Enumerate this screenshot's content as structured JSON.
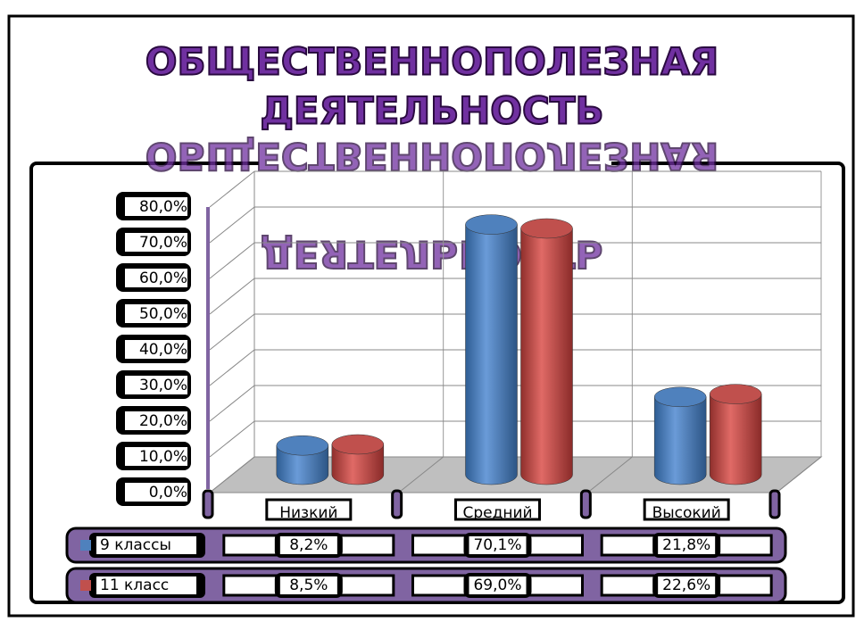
{
  "chart_data": {
    "type": "bar3d_cylinder",
    "title": [
      "ОБЩЕСТВЕННОПОЛЕЗНАЯ",
      "ДЕЯТЕЛЬНОСТЬ"
    ],
    "categories": [
      "Низкий",
      "Средний",
      "Высокий"
    ],
    "series": [
      {
        "name": "9 классы",
        "color": "#4f81bd",
        "values": [
          8.2,
          70.1,
          21.8
        ],
        "value_labels": [
          "8,2%",
          "70,1%",
          "21,8%"
        ]
      },
      {
        "name": "11 класс",
        "color": "#c0504d",
        "values": [
          8.5,
          69.0,
          22.6
        ],
        "value_labels": [
          "8,5%",
          "69,0%",
          "22,6%"
        ]
      }
    ],
    "ylim": [
      0,
      80
    ],
    "yticks": [
      {
        "value": 0,
        "label": "0,0%"
      },
      {
        "value": 10,
        "label": "10,0%"
      },
      {
        "value": 20,
        "label": "20,0%"
      },
      {
        "value": 30,
        "label": "30,0%"
      },
      {
        "value": 40,
        "label": "40,0%"
      },
      {
        "value": 50,
        "label": "50,0%"
      },
      {
        "value": 60,
        "label": "60,0%"
      },
      {
        "value": 70,
        "label": "70,0%"
      },
      {
        "value": 80,
        "label": "80,0%"
      }
    ],
    "grid": true,
    "legend": "table"
  }
}
